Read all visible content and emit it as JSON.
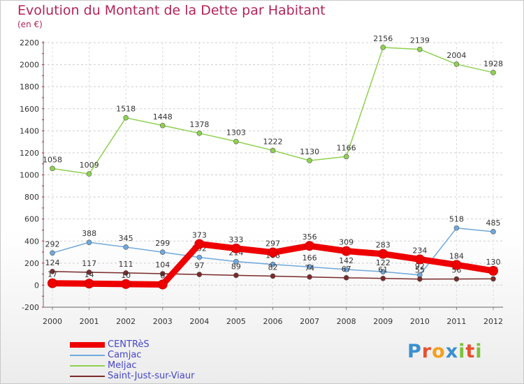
{
  "header": {
    "title": "Evolution du Montant de la Dette par Habitant",
    "subtitle": "(en €)"
  },
  "brand": {
    "text": "Proxiti",
    "letters": [
      {
        "ch": "P",
        "color": "#3a8fd0"
      },
      {
        "ch": "r",
        "color": "#e8502f"
      },
      {
        "ch": "o",
        "color": "#f2a01e"
      },
      {
        "ch": "x",
        "color": "#3a8fd0"
      },
      {
        "ch": "i",
        "color": "#7cc23a"
      },
      {
        "ch": "t",
        "color": "#e8502f"
      },
      {
        "ch": "i",
        "color": "#7cc23a"
      }
    ]
  },
  "chart_data": {
    "type": "line",
    "x": [
      "2000",
      "2001",
      "2002",
      "2003",
      "2004",
      "2005",
      "2006",
      "2007",
      "2008",
      "2009",
      "2010",
      "2011",
      "2012"
    ],
    "ylim": [
      -200,
      2200
    ],
    "yticks": [
      -200,
      0,
      200,
      400,
      600,
      800,
      1000,
      1200,
      1400,
      1600,
      1800,
      2000,
      2200
    ],
    "grid": true,
    "legend_position": "bottom-left",
    "series": [
      {
        "name": "Meljac",
        "color": "#8fd14f",
        "values": [
          1058,
          1009,
          1518,
          1448,
          1378,
          1303,
          1222,
          1130,
          1166,
          2156,
          2139,
          2004,
          1928
        ],
        "labels": [
          "1058",
          "1009",
          "1518",
          "1448",
          "1378",
          "1303",
          "1222",
          "1130",
          "1166",
          "2156",
          "2139",
          "2004",
          "1928"
        ]
      },
      {
        "name": "Camjac",
        "color": "#6fa8dc",
        "values": [
          292,
          388,
          345,
          299,
          252,
          214,
          188,
          166,
          142,
          122,
          92,
          518,
          485
        ],
        "labels": [
          "292",
          "388",
          "345",
          "299",
          "252",
          "214",
          "188",
          "166",
          "142",
          "122",
          "92",
          "518",
          "485"
        ]
      },
      {
        "name": "Saint-Just-sur-Viaur",
        "color": "#7a2a2a",
        "values": [
          124,
          117,
          111,
          104,
          97,
          89,
          82,
          74,
          67,
          61,
          55,
          56,
          57
        ],
        "labels": [
          "124",
          "117",
          "111",
          "104",
          "97",
          "89",
          "82",
          "74",
          "67",
          "61",
          "55",
          "56",
          "57"
        ]
      },
      {
        "name": "CENTRèS",
        "color": "#ee0000",
        "values": [
          17,
          14,
          10,
          6,
          373,
          333,
          297,
          356,
          309,
          283,
          234,
          184,
          130
        ],
        "labels": [
          "17",
          "14",
          "10",
          "6",
          "373",
          "333",
          "297",
          "356",
          "309",
          "283",
          "234",
          "184",
          "130"
        ]
      }
    ],
    "legend": [
      "CENTRèS",
      "Camjac",
      "Meljac",
      "Saint-Just-sur-Viaur"
    ]
  }
}
